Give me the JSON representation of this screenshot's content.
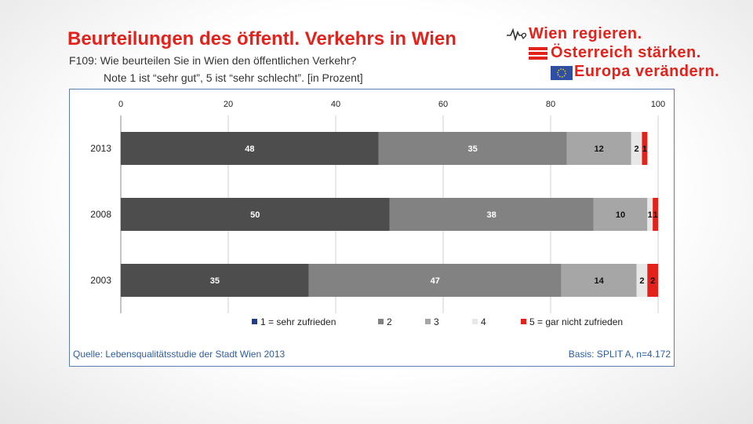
{
  "header": {
    "title": "Beurteilungen des öffentl. Verkehrs in Wien",
    "question": "F109: Wie beurteilen Sie in Wien den öffentlichen Verkehr?",
    "note": "Note 1  ist “sehr gut”, 5 ist “sehr schlecht”. [in Prozent]"
  },
  "logo": {
    "line1": "Wien regieren.",
    "line2": "Österreich stärken.",
    "line3": "Europa verändern."
  },
  "footer": {
    "source": "Quelle: Lebensqualitätsstudie der Stadt Wien 2013",
    "basis": "Basis: SPLIT A, n=4.172"
  },
  "colors": {
    "s1": "#4d4d4d",
    "s2": "#828282",
    "s3": "#a6a6a6",
    "s4": "#e8e8e8",
    "s5": "#e3231b",
    "legend_s1": "#1f3f8a"
  },
  "chart_data": {
    "type": "bar",
    "orientation": "horizontal",
    "stacked": true,
    "categories": [
      "2013",
      "2008",
      "2003"
    ],
    "series": [
      {
        "name": "1 = sehr zufrieden",
        "values": [
          48,
          50,
          35
        ]
      },
      {
        "name": "2",
        "values": [
          35,
          38,
          47
        ]
      },
      {
        "name": "3",
        "values": [
          12,
          10,
          14
        ]
      },
      {
        "name": "4",
        "values": [
          2,
          1,
          2
        ]
      },
      {
        "name": "5 = gar nicht zufrieden",
        "values": [
          1,
          1,
          2
        ]
      }
    ],
    "xlim": [
      0,
      100
    ],
    "xticks": [
      0,
      20,
      40,
      60,
      80,
      100
    ],
    "grid": true,
    "legend_position": "bottom"
  }
}
